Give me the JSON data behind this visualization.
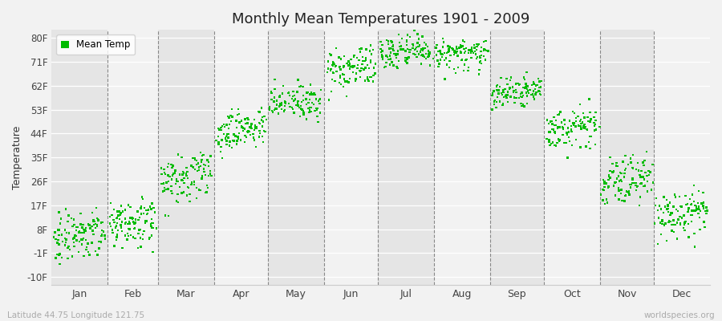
{
  "title": "Monthly Mean Temperatures 1901 - 2009",
  "ylabel": "Temperature",
  "xlabel_bottom_left": "Latitude 44.75 Longitude 121.75",
  "xlabel_bottom_right": "worldspecies.org",
  "ytick_labels": [
    "-10F",
    "-1F",
    "8F",
    "17F",
    "26F",
    "35F",
    "44F",
    "53F",
    "62F",
    "71F",
    "80F"
  ],
  "ytick_values": [
    -10,
    -1,
    8,
    17,
    26,
    35,
    44,
    53,
    62,
    71,
    80
  ],
  "xtick_labels": [
    "Jan",
    "Feb",
    "Mar",
    "Apr",
    "May",
    "Jun",
    "Jul",
    "Aug",
    "Sep",
    "Oct",
    "Nov",
    "Dec"
  ],
  "dot_color": "#00bb00",
  "legend_label": "Mean Temp",
  "bg_color": "#f2f2f2",
  "stripe_light": "#f2f2f2",
  "stripe_dark": "#e5e5e5",
  "ylim": [
    -13,
    83
  ],
  "n_years": 109,
  "monthly_means_F": [
    5.0,
    10.0,
    27.0,
    45.0,
    55.0,
    68.0,
    74.0,
    73.0,
    59.0,
    45.0,
    25.0,
    12.0
  ],
  "monthly_std_F": [
    4.5,
    4.5,
    5.0,
    3.5,
    3.5,
    3.5,
    3.0,
    3.0,
    3.0,
    3.5,
    4.5,
    4.5
  ]
}
